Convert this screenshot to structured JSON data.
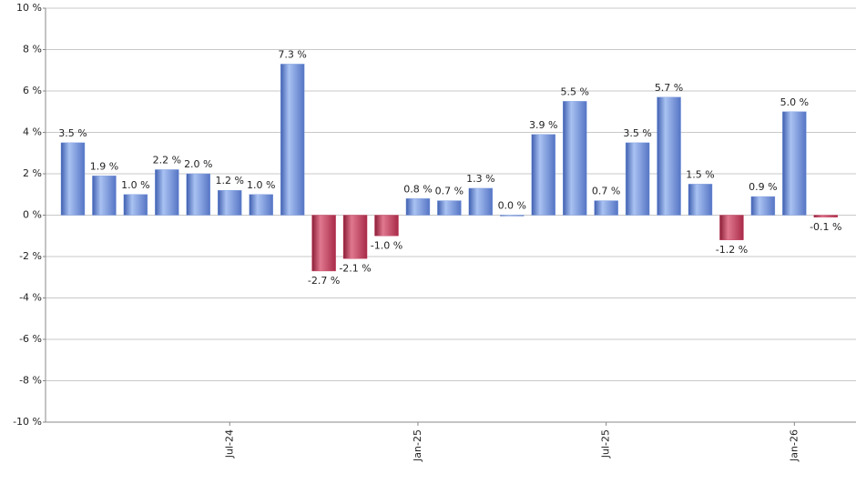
{
  "chart_data": {
    "type": "bar",
    "categories": [
      null,
      null,
      null,
      null,
      null,
      "Jul-24",
      null,
      null,
      null,
      null,
      null,
      "Jan-25",
      null,
      null,
      null,
      null,
      null,
      "Jul-25",
      null,
      null,
      null,
      null,
      null,
      "Jan-26",
      null
    ],
    "values": [
      3.5,
      1.9,
      1.0,
      2.2,
      2.0,
      1.2,
      1.0,
      7.3,
      -2.7,
      -2.1,
      -1.0,
      0.8,
      0.7,
      1.3,
      0.0,
      3.9,
      5.5,
      0.7,
      3.5,
      5.7,
      1.5,
      -1.2,
      0.9,
      5.0,
      -0.1
    ],
    "value_labels": [
      "3.5 %",
      "1.9 %",
      "1.0 %",
      "2.2 %",
      "2.0 %",
      "1.2 %",
      "1.0 %",
      "7.3 %",
      "-2.7 %",
      "-2.1 %",
      "-1.0 %",
      "0.8 %",
      "0.7 %",
      "1.3 %",
      "0.0 %",
      "3.9 %",
      "5.5 %",
      "0.7 %",
      "3.5 %",
      "5.7 %",
      "1.5 %",
      "-1.2 %",
      "0.9 %",
      "5.0 %",
      "-0.1 %"
    ],
    "positive_color": "#7b9be0",
    "negative_color": "#c8405e",
    "ylim": [
      -10,
      10
    ],
    "yticks": [
      {
        "value": -10,
        "label": "-10 %"
      },
      {
        "value": -8,
        "label": "-8 %"
      },
      {
        "value": -6,
        "label": "-6 %"
      },
      {
        "value": -4,
        "label": "-4 %"
      },
      {
        "value": -2,
        "label": "-2 %"
      },
      {
        "value": 0,
        "label": "0 %"
      },
      {
        "value": 2,
        "label": "2 %"
      },
      {
        "value": 4,
        "label": "4 %"
      },
      {
        "value": 6,
        "label": "6 %"
      },
      {
        "value": 8,
        "label": "8 %"
      },
      {
        "value": 10,
        "label": "10 %"
      }
    ],
    "grid": true
  }
}
